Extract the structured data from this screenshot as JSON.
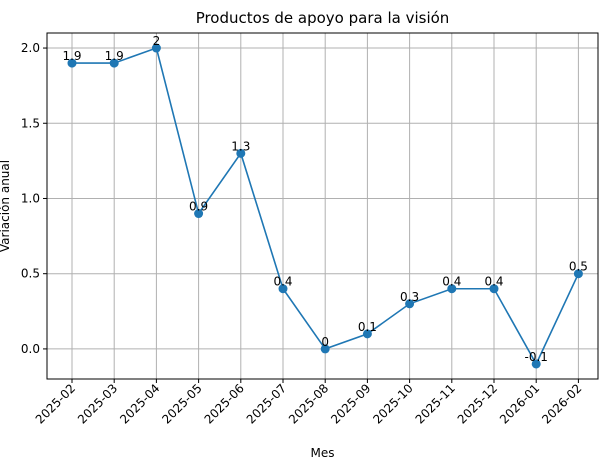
{
  "chart_data": {
    "type": "line",
    "title": "Productos de apoyo para la visión",
    "xlabel": "Mes",
    "ylabel": "Variación anual",
    "categories": [
      "2025-02",
      "2025-03",
      "2025-04",
      "2025-05",
      "2025-06",
      "2025-07",
      "2025-08",
      "2025-09",
      "2025-10",
      "2025-11",
      "2025-12",
      "2026-01",
      "2026-02"
    ],
    "series": [
      {
        "values": [
          1.9,
          1.9,
          2,
          0.9,
          1.3,
          0.4,
          0,
          0.1,
          0.3,
          0.4,
          0.4,
          -0.1,
          0.5
        ],
        "data_labels": [
          "1.9",
          "1.9",
          "2",
          "0.9",
          "1.3",
          "0.4",
          "0",
          "0.1",
          "0.3",
          "0.4",
          "0.4",
          "-0.1",
          "0.5"
        ]
      }
    ],
    "ylim": [
      -0.2,
      2.1
    ],
    "yticks": [
      "0.0",
      "0.5",
      "1.0",
      "1.5",
      "2.0"
    ],
    "grid": true,
    "line_color": "#1f77b4"
  }
}
